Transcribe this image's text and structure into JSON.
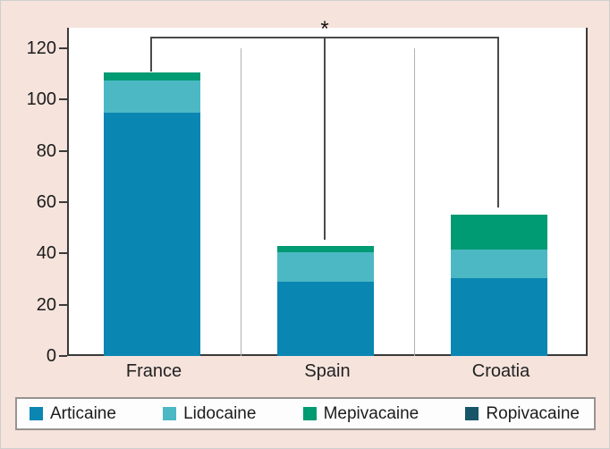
{
  "chart_data": {
    "type": "bar",
    "stacked": true,
    "title": "",
    "xlabel": "",
    "ylabel": "",
    "categories": [
      "France",
      "Spain",
      "Croatia"
    ],
    "series": [
      {
        "name": "Articaine",
        "color": "#0a86b2",
        "values": [
          95,
          29,
          30.5
        ]
      },
      {
        "name": "Lidocaine",
        "color": "#4cb8c4",
        "values": [
          12.5,
          11.5,
          11
        ]
      },
      {
        "name": "Mepivacaine",
        "color": "#009a73",
        "values": [
          3,
          2.5,
          13.5
        ]
      },
      {
        "name": "Ropivacaine",
        "color": "#175568",
        "values": [
          0,
          0,
          0
        ]
      }
    ],
    "stack_totals": [
      110.5,
      43,
      55
    ],
    "ylim": [
      0,
      120
    ],
    "yticks": [
      0,
      20,
      40,
      60,
      80,
      100,
      120
    ],
    "grid": false,
    "legend_position": "bottom",
    "annotation": {
      "text": "*",
      "type": "significance-bracket",
      "from": "France",
      "to": "Croatia",
      "marker_over": "Spain"
    },
    "colors": {
      "background": "#f5e3dc",
      "plot_background": "#ffffff",
      "axis": "#3a3a3a",
      "bracket": "#4a4a4a",
      "separator": "#b3b0ae"
    }
  }
}
